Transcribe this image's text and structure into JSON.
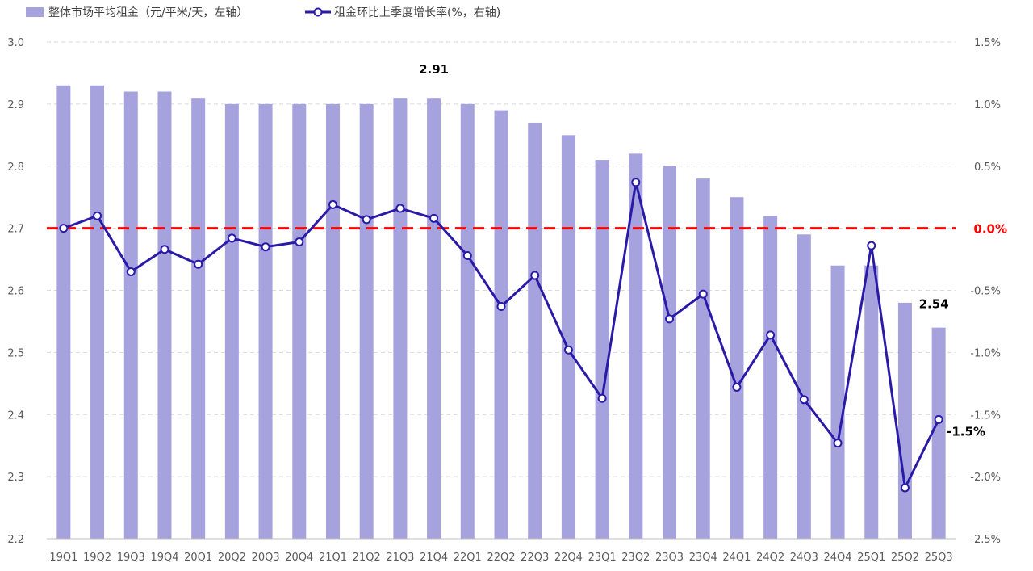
{
  "chart_data": {
    "type": "bar+line",
    "categories": [
      "19Q1",
      "19Q2",
      "19Q3",
      "19Q4",
      "20Q1",
      "20Q2",
      "20Q3",
      "20Q4",
      "21Q1",
      "21Q2",
      "21Q3",
      "21Q4",
      "22Q1",
      "22Q2",
      "22Q3",
      "22Q4",
      "23Q1",
      "23Q2",
      "23Q3",
      "23Q4",
      "24Q1",
      "24Q2",
      "24Q3",
      "24Q4",
      "25Q1",
      "25Q2",
      "25Q3"
    ],
    "series": [
      {
        "name": "整体市场平均租金（元/平米/天，左轴）",
        "type": "bar",
        "axis": "left",
        "color": "#a6a2dd",
        "values": [
          2.93,
          2.93,
          2.92,
          2.92,
          2.91,
          2.9,
          2.9,
          2.9,
          2.9,
          2.9,
          2.91,
          2.91,
          2.9,
          2.89,
          2.87,
          2.85,
          2.81,
          2.82,
          2.8,
          2.78,
          2.75,
          2.72,
          2.69,
          2.64,
          2.64,
          2.58,
          2.54
        ]
      },
      {
        "name": "租金环比上季度增长率(%，右轴)",
        "type": "line",
        "axis": "right",
        "color": "#2a1aa8",
        "values": [
          0.0,
          0.1,
          -0.35,
          -0.17,
          -0.29,
          -0.08,
          -0.15,
          -0.11,
          0.19,
          0.07,
          0.16,
          0.08,
          -0.22,
          -0.63,
          -0.38,
          -0.98,
          -1.37,
          0.37,
          -0.73,
          -0.53,
          -1.28,
          -0.86,
          -1.38,
          -1.73,
          -0.14,
          -2.09,
          -1.54
        ]
      }
    ],
    "y_left": {
      "min": 2.2,
      "max": 3.0,
      "step": 0.1,
      "ticks": [
        "2.2",
        "2.3",
        "2.4",
        "2.5",
        "2.6",
        "2.7",
        "2.8",
        "2.9",
        "3.0"
      ]
    },
    "y_right": {
      "min": -2.5,
      "max": 1.5,
      "step": 0.5,
      "ticks": [
        "-2.5%",
        "-2.0%",
        "-1.5%",
        "-1.0%",
        "-0.5%",
        "0.0%",
        "0.5%",
        "1.0%",
        "1.5%"
      ]
    },
    "reference_line": {
      "axis": "right",
      "value": 0.0,
      "color": "#ff0000",
      "label": "0.0%"
    },
    "annotations": [
      {
        "text": "2.91",
        "category_index": 11,
        "series": "bar"
      },
      {
        "text": "2.54",
        "category_index": 26,
        "series": "bar"
      },
      {
        "text": "-1.5%",
        "category_index": 26,
        "series": "line"
      }
    ],
    "grid": true,
    "legend_position": "top-left"
  }
}
